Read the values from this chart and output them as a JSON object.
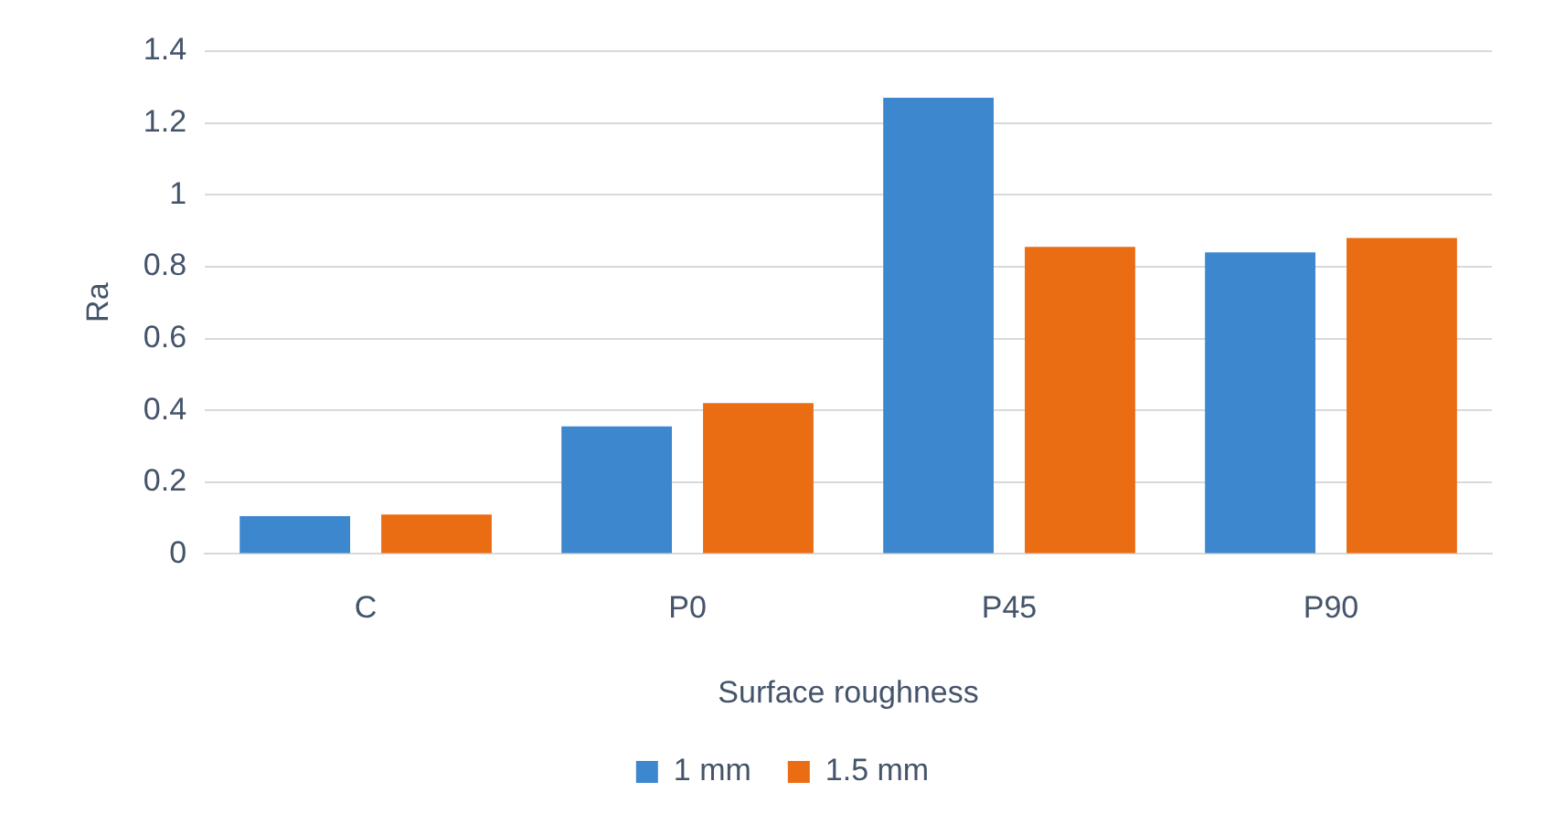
{
  "chart_data": {
    "type": "bar",
    "xlabel": "Surface roughness",
    "ylabel": "Ra",
    "categories": [
      "C",
      "P0",
      "P45",
      "P90"
    ],
    "series": [
      {
        "name": "1 mm",
        "color": "#3d87cf",
        "values": [
          0.105,
          0.355,
          1.27,
          0.84
        ]
      },
      {
        "name": "1.5 mm",
        "color": "#ea6c13",
        "values": [
          0.11,
          0.42,
          0.855,
          0.88
        ]
      }
    ],
    "ylim": [
      0,
      1.4
    ],
    "yticks": [
      0,
      0.2,
      0.4,
      0.6,
      0.8,
      1,
      1.2,
      1.4
    ],
    "grid": "y",
    "legend": "bottom"
  }
}
